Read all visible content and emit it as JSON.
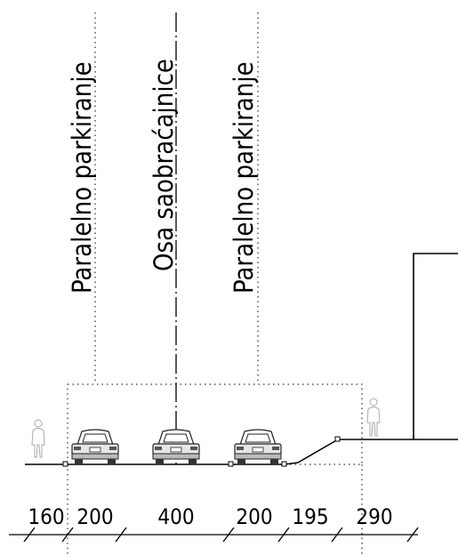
{
  "labels": {
    "left_parking": "Paralelno parkiranje",
    "axis": "Osa saobraćajnice",
    "right_parking": "Paralelno parkiranje"
  },
  "dimensions": [
    "160",
    "200",
    "400",
    "200",
    "195",
    "290"
  ],
  "colors": {
    "line": "#000000",
    "pedestrian": "#9a9a9a",
    "car": "#2b2b2b"
  }
}
